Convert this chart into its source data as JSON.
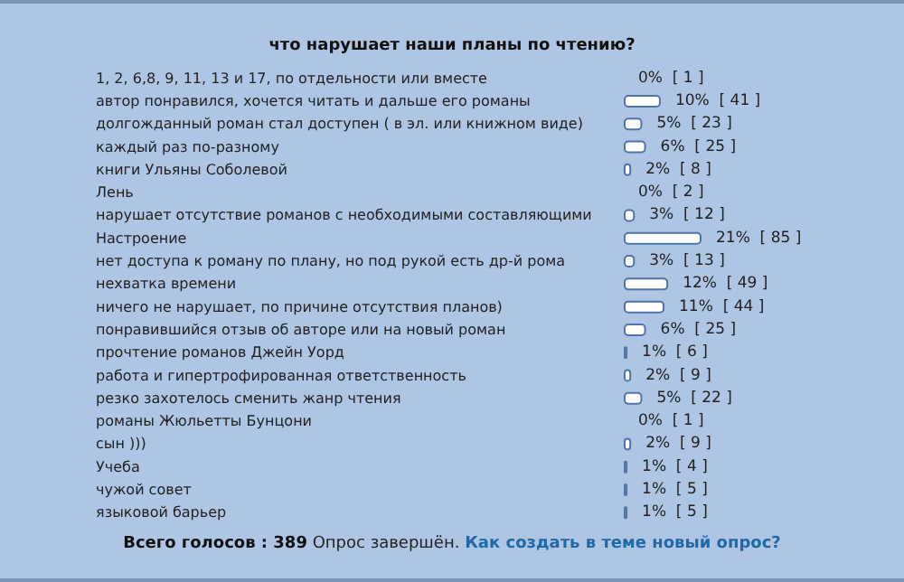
{
  "chart_data": {
    "type": "bar",
    "orientation": "horizontal",
    "data_labels": false,
    "title": "что нарушает наши планы по чтению?",
    "categories": [
      "1, 2, 6,8, 9, 11, 13 и 17, по отдельности или вместе",
      "автор понравился, хочется читать и дальше его романы",
      "долгожданный роман стал доступен ( в эл. или книжном виде)",
      "каждый раз по-разному",
      "книги Ульяны Соболевой",
      "Лень",
      "нарушает отсутствие романов с необходимыми составляющими",
      "Настроение",
      "нет доступа к роману по плану, но под рукой есть др-й рома",
      "нехватка времени",
      "ничего не нарушает, по причине отсутствия планов)",
      "понравившийся отзыв об авторе или на новый роман",
      "прочтение романов Джейн Уорд",
      "работа и гипертрофированная ответственность",
      "резко захотелось сменить жанр чтения",
      "романы Жюльетты Бунцони",
      "сын )))",
      "Учеба",
      "чужой совет",
      "языковой барьер"
    ],
    "values": [
      0,
      10,
      5,
      6,
      2,
      0,
      3,
      21,
      3,
      12,
      11,
      6,
      1,
      2,
      5,
      0,
      2,
      1,
      1,
      1
    ],
    "value_labels": [
      "0%  [ 1 ]",
      "10%  [ 41 ]",
      "5%  [ 23 ]",
      "6%  [ 25 ]",
      "2%  [ 8 ]",
      "0%  [ 2 ]",
      "3%  [ 12 ]",
      "21%  [ 85 ]",
      "3%  [ 13 ]",
      "12%  [ 49 ]",
      "11%  [ 44 ]",
      "6%  [ 25 ]",
      "1%  [ 6 ]",
      "2%  [ 9 ]",
      "5%  [ 22 ]",
      "0%  [ 1 ]",
      "2%  [ 9 ]",
      "1%  [ 4 ]",
      "1%  [ 5 ]",
      "1%  [ 5 ]"
    ],
    "color": "#ffffff",
    "annotations": [
      "Всего голосов : 389",
      "Опрос завершён.",
      "Как создать в теме новый опрос?"
    ]
  }
}
